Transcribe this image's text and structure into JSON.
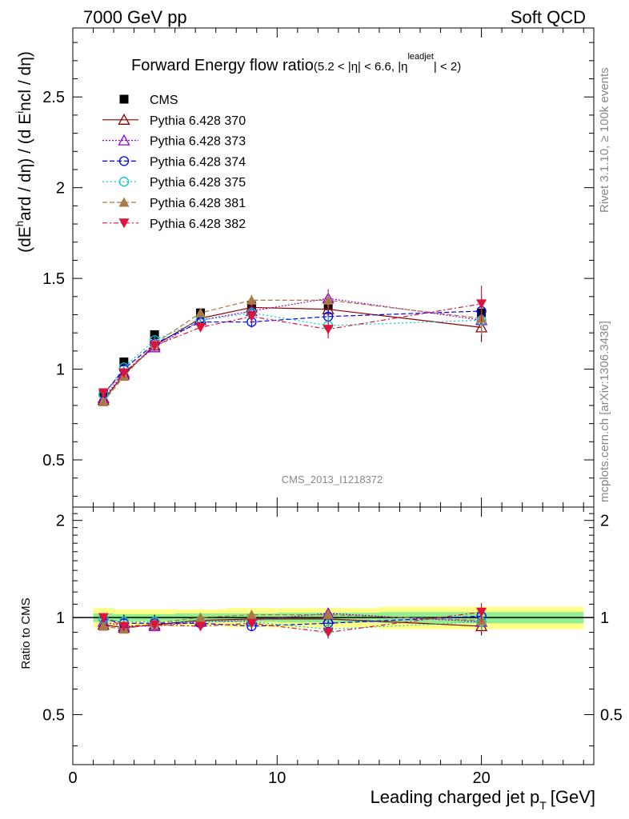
{
  "header": {
    "left": "7000 GeV pp",
    "right": "Soft QCD"
  },
  "side": {
    "rivet": "Rivet 3.1.10, ≥ 100k events",
    "mcplots": "mcplots.cern.ch [arXiv:1306.3436]"
  },
  "chart_data": [
    {
      "type": "line",
      "panel": "main",
      "title": "Forward Energy flow ratio",
      "title_cut": "(5.2 < |η| < 6.6, |η",
      "title_cut_sup": "leadjet",
      "title_cut_end": "| < 2)",
      "ylabel": "(dE^hard / dη) / (d E^incl / dη)",
      "watermark": "CMS_2013_I1218372",
      "xlim": [
        0,
        25.5
      ],
      "ylim": [
        0.24,
        2.88
      ],
      "x_ticks": [
        0,
        10,
        20
      ],
      "y_ticks": [
        0.5,
        1,
        1.5,
        2,
        2.5
      ],
      "y_tick_labels": [
        "0.5",
        "1",
        "1.5",
        "2",
        "2.5"
      ],
      "x": [
        1.5,
        2.5,
        4.0,
        6.25,
        8.75,
        12.5,
        20.0
      ],
      "series": [
        {
          "name": "CMS",
          "color": "#000000",
          "marker": "square",
          "dash": "",
          "legend_line": false,
          "values": [
            0.87,
            1.04,
            1.19,
            1.31,
            1.35,
            1.35,
            1.31
          ],
          "errors": [
            0.02,
            0.02,
            0.02,
            0.02,
            0.02,
            0.02,
            0.02
          ]
        },
        {
          "name": "Pythia 6.428 370",
          "color": "#8b0000",
          "marker": "triangle-open",
          "dash": "",
          "legend_line": true,
          "values": [
            0.83,
            0.97,
            1.13,
            1.28,
            1.34,
            1.33,
            1.23
          ],
          "errors": [
            0.01,
            0.01,
            0.02,
            0.02,
            0.03,
            0.05,
            0.08
          ]
        },
        {
          "name": "Pythia 6.428 373",
          "color": "#9400d3",
          "marker": "triangle-open",
          "dash": "2,2",
          "legend_line": true,
          "values": [
            0.84,
            0.98,
            1.12,
            1.27,
            1.32,
            1.39,
            1.27
          ],
          "errors": [
            0.01,
            0.01,
            0.02,
            0.02,
            0.03,
            0.05,
            0.08
          ]
        },
        {
          "name": "Pythia 6.428 374",
          "color": "#0000ff",
          "marker": "circle-open",
          "dash": "6,3",
          "legend_line": true,
          "values": [
            0.86,
            1.0,
            1.14,
            1.26,
            1.26,
            1.29,
            1.32
          ],
          "errors": [
            0.01,
            0.01,
            0.02,
            0.02,
            0.03,
            0.05,
            0.08
          ]
        },
        {
          "name": "Pythia 6.428 375",
          "color": "#00c8c8",
          "marker": "circle-open",
          "dash": "2,3",
          "legend_line": true,
          "values": [
            0.86,
            1.01,
            1.16,
            1.27,
            1.31,
            1.24,
            1.27
          ],
          "errors": [
            0.01,
            0.01,
            0.02,
            0.02,
            0.03,
            0.05,
            0.08
          ]
        },
        {
          "name": "Pythia 6.428 381",
          "color": "#a87a48",
          "marker": "triangle",
          "dash": "6,3",
          "legend_line": true,
          "values": [
            0.82,
            0.96,
            1.14,
            1.31,
            1.38,
            1.38,
            1.28
          ],
          "errors": [
            0.01,
            0.01,
            0.02,
            0.02,
            0.03,
            0.05,
            0.08
          ]
        },
        {
          "name": "Pythia 6.428 382",
          "color": "#dc143c",
          "marker": "triangle-down",
          "dash": "6,3,2,3",
          "legend_line": true,
          "values": [
            0.87,
            0.98,
            1.13,
            1.23,
            1.29,
            1.22,
            1.36
          ],
          "errors": [
            0.01,
            0.01,
            0.02,
            0.02,
            0.03,
            0.05,
            0.1
          ]
        }
      ]
    },
    {
      "type": "line",
      "panel": "ratio",
      "ylabel": "Ratio to CMS",
      "xlabel": "Leading charged jet p",
      "xlabel_sub": "T",
      "xlabel_unit": "[GeV]",
      "xlim": [
        0,
        25.5
      ],
      "ylim": [
        0.35,
        2.2
      ],
      "y_ticks": [
        0.5,
        1,
        2
      ],
      "y_tick_labels": [
        "0.5",
        "1",
        "2"
      ],
      "x_tick_labels": [
        "0",
        "10",
        "20"
      ],
      "band": {
        "x_edges": [
          1.0,
          2.0,
          3.0,
          5.0,
          7.5,
          10.0,
          15.0,
          25.0
        ],
        "inner": [
          0.03,
          0.025,
          0.025,
          0.03,
          0.03,
          0.035,
          0.04
        ],
        "outer": [
          0.07,
          0.06,
          0.06,
          0.06,
          0.07,
          0.07,
          0.08
        ],
        "inner_color": "#90ee90",
        "outer_color": "#ffff88"
      },
      "x": [
        1.5,
        2.5,
        4.0,
        6.25,
        8.75,
        12.5,
        20.0
      ],
      "series": [
        {
          "name": "Pythia 6.428 370",
          "values": [
            0.95,
            0.93,
            0.95,
            0.98,
            0.99,
            0.99,
            0.94
          ],
          "errors": [
            0.01,
            0.01,
            0.02,
            0.02,
            0.03,
            0.04,
            0.06
          ]
        },
        {
          "name": "Pythia 6.428 373",
          "values": [
            0.97,
            0.94,
            0.94,
            0.97,
            0.98,
            1.03,
            0.97
          ],
          "errors": [
            0.01,
            0.01,
            0.02,
            0.02,
            0.03,
            0.04,
            0.06
          ]
        },
        {
          "name": "Pythia 6.428 374",
          "values": [
            0.99,
            0.96,
            0.96,
            0.96,
            0.94,
            0.96,
            1.01
          ],
          "errors": [
            0.01,
            0.01,
            0.02,
            0.02,
            0.03,
            0.04,
            0.06
          ]
        },
        {
          "name": "Pythia 6.428 375",
          "values": [
            0.99,
            0.97,
            0.97,
            0.97,
            0.97,
            0.92,
            0.97
          ],
          "errors": [
            0.01,
            0.01,
            0.02,
            0.02,
            0.03,
            0.04,
            0.06
          ]
        },
        {
          "name": "Pythia 6.428 381",
          "values": [
            0.94,
            0.92,
            0.96,
            1.0,
            1.02,
            1.02,
            0.98
          ],
          "errors": [
            0.01,
            0.01,
            0.02,
            0.02,
            0.03,
            0.04,
            0.06
          ]
        },
        {
          "name": "Pythia 6.428 382",
          "values": [
            1.0,
            0.94,
            0.95,
            0.94,
            0.96,
            0.9,
            1.04
          ],
          "errors": [
            0.01,
            0.01,
            0.02,
            0.02,
            0.03,
            0.04,
            0.07
          ]
        }
      ]
    }
  ]
}
